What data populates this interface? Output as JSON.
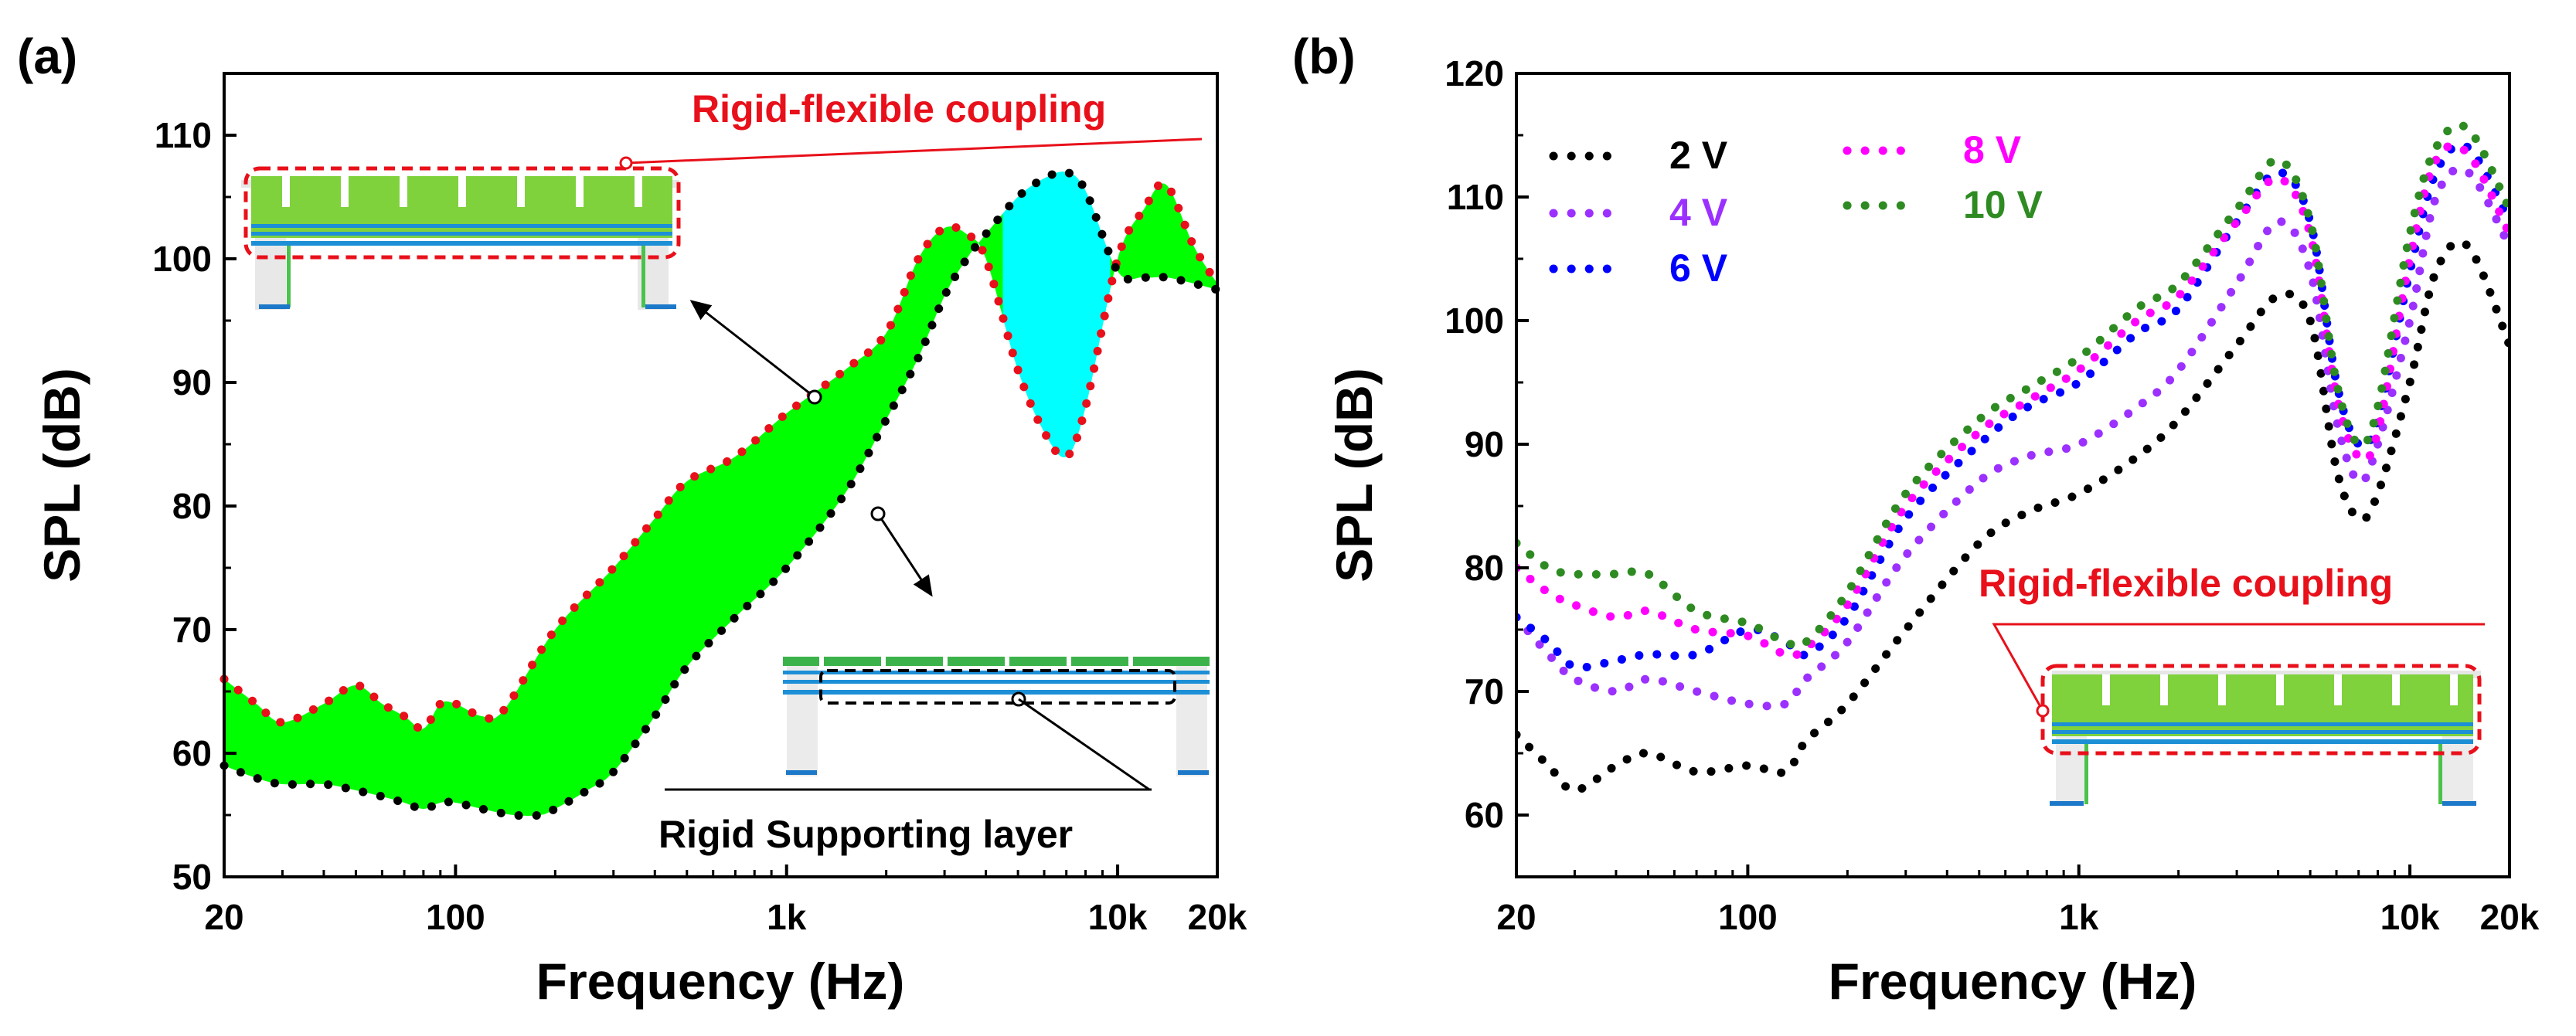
{
  "panels": {
    "a": {
      "label": "(a)"
    },
    "b": {
      "label": "(b)"
    }
  },
  "annotations": {
    "a_top": "Rigid-flexible coupling",
    "a_bottom": "Rigid Supporting layer",
    "b_inset": "Rigid-flexible coupling"
  },
  "colors": {
    "fill_main": "#00ff00",
    "fill_peak": "#00ffff",
    "upper_dots": "#e8101a",
    "lower_dots": "#000000",
    "annotation": "#e8101a"
  },
  "chart_data": [
    {
      "type": "area",
      "panel": "(a)",
      "xlabel": "Frequency (Hz)",
      "ylabel": "SPL (dB)",
      "x_scale": "log",
      "xlim": [
        20,
        20000
      ],
      "ylim": [
        50,
        115
      ],
      "x_ticks": [
        20,
        100,
        1000,
        10000,
        20000
      ],
      "x_tick_labels": [
        "20",
        "100",
        "1k",
        "10k",
        "20k"
      ],
      "y_ticks": [
        50,
        60,
        70,
        80,
        90,
        100,
        110
      ],
      "y_tick_labels": [
        "50",
        "60",
        "70",
        "80",
        "90",
        "100",
        "110"
      ],
      "upper_curve": {
        "x": [
          20,
          25,
          30,
          40,
          50,
          60,
          70,
          80,
          90,
          100,
          120,
          140,
          200,
          300,
          400,
          500,
          700,
          1000,
          1500,
          2000,
          2500,
          3000,
          3500,
          4000,
          5000,
          6000,
          7000,
          8000,
          10000,
          12000,
          14000,
          17000,
          20000
        ],
        "y": [
          66,
          64,
          62.5,
          64,
          65.5,
          64,
          63,
          62,
          64,
          64,
          63,
          63.5,
          70,
          75,
          79,
          82,
          84,
          87.5,
          91,
          94,
          100,
          102.5,
          102,
          100,
          91,
          86,
          84,
          88,
          100,
          104,
          106,
          101,
          98
        ]
      },
      "lower_curve": {
        "x": [
          20,
          25,
          30,
          40,
          50,
          60,
          70,
          80,
          90,
          100,
          120,
          150,
          180,
          200,
          250,
          300,
          400,
          500,
          700,
          1000,
          1500,
          2000,
          2500,
          3000,
          3500,
          4000,
          5000,
          6000,
          7000,
          8000,
          10000,
          12000,
          14000,
          17000,
          20000
        ],
        "y": [
          59,
          58,
          57.5,
          57.5,
          57,
          56.5,
          56,
          55.5,
          56,
          56,
          55.5,
          55,
          55,
          55.5,
          57,
          58.5,
          63,
          67,
          71,
          75,
          81,
          87,
          92,
          97,
          100,
          102,
          105,
          106.5,
          107,
          105.5,
          99,
          98.5,
          98.5,
          98,
          97.5
        ]
      }
    },
    {
      "type": "line",
      "panel": "(b)",
      "xlabel": "Frequency (Hz)",
      "ylabel": "SPL (dB)",
      "x_scale": "log",
      "xlim": [
        20,
        20000
      ],
      "ylim": [
        55,
        120
      ],
      "x_ticks": [
        20,
        100,
        1000,
        10000,
        20000
      ],
      "x_tick_labels": [
        "20",
        "100",
        "1k",
        "10k",
        "20k"
      ],
      "y_ticks": [
        60,
        70,
        80,
        90,
        100,
        110,
        120
      ],
      "y_tick_labels": [
        "60",
        "70",
        "80",
        "90",
        "100",
        "110",
        "120"
      ],
      "x": [
        20,
        25,
        30,
        40,
        50,
        70,
        100,
        130,
        150,
        200,
        300,
        500,
        700,
        1000,
        1500,
        2000,
        3000,
        4000,
        5000,
        6000,
        7000,
        8000,
        10000,
        12000,
        15000,
        20000
      ],
      "series": [
        {
          "name": "2 V",
          "color": "#000000",
          "values": [
            66.5,
            64,
            62,
            64,
            65,
            63.5,
            64,
            63.5,
            66,
            69,
            75,
            82,
            84.5,
            86,
            89,
            92,
            98,
            102,
            100,
            88,
            84,
            86,
            95,
            104,
            106,
            98
          ]
        },
        {
          "name": "4 V",
          "color": "#9b30ff",
          "values": [
            76,
            73,
            71,
            70,
            71,
            70,
            69,
            69,
            71,
            74,
            81,
            87,
            89,
            90,
            93,
            96,
            103,
            108,
            104,
            92,
            87,
            90,
            100,
            110,
            112,
            106
          ]
        },
        {
          "name": "6 V",
          "color": "#0000ff",
          "values": [
            76,
            74,
            72,
            72.5,
            73,
            73,
            75,
            74,
            73,
            76,
            84,
            90,
            93,
            95,
            99,
            101,
            108,
            112,
            108,
            95,
            90,
            92,
            104,
            112,
            114,
            108
          ]
        },
        {
          "name": "8 V",
          "color": "#ff00ff",
          "values": [
            80,
            78,
            77,
            76,
            76.5,
            75,
            74.5,
            73,
            73.5,
            77,
            85,
            91,
            93.5,
            96,
            100,
            102,
            108,
            111.5,
            107,
            94,
            89,
            91,
            105,
            113,
            113.5,
            107
          ]
        },
        {
          "name": "10 V",
          "color": "#2e8b22",
          "values": [
            82,
            80,
            79.5,
            79.5,
            79.5,
            76.5,
            75.5,
            74,
            74,
            78,
            86,
            92,
            94.5,
            97,
            101,
            103,
            109,
            113,
            108,
            95,
            90,
            93,
            107,
            114,
            115.5,
            109
          ]
        }
      ],
      "legend_placement": "top-left"
    }
  ]
}
